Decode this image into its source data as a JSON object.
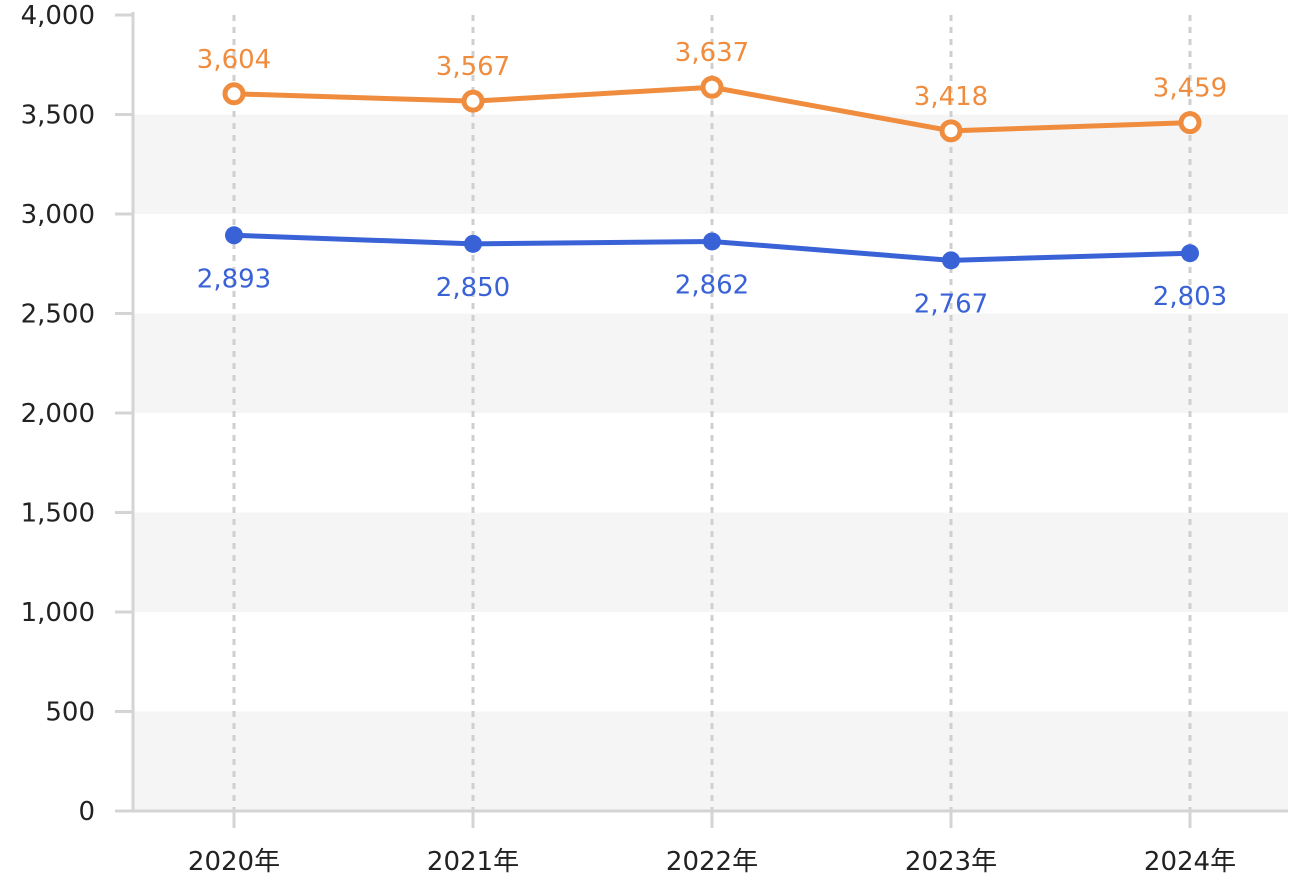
{
  "chart_data": {
    "type": "line",
    "categories": [
      "2020年",
      "2021年",
      "2022年",
      "2023年",
      "2024年"
    ],
    "series": [
      {
        "values": [
          3604,
          3567,
          3637,
          3418,
          3459
        ],
        "color": "#F08C3E",
        "marker": "hollow-circle",
        "label_position": "above"
      },
      {
        "values": [
          2893,
          2850,
          2862,
          2767,
          2803
        ],
        "color": "#3A62D7",
        "marker": "filled-circle",
        "label_position": "below"
      }
    ],
    "ylim": [
      0,
      4000
    ],
    "yticks": [
      0,
      500,
      1000,
      1500,
      2000,
      2500,
      3000,
      3500,
      4000
    ],
    "ytick_labels": [
      "0",
      "500",
      "1,000",
      "1,500",
      "2,000",
      "2,500",
      "3,000",
      "3,500",
      "4,000"
    ],
    "data_labels": [
      [
        "3,604",
        "3,567",
        "3,637",
        "3,418",
        "3,459"
      ],
      [
        "2,893",
        "2,850",
        "2,862",
        "2,767",
        "2,803"
      ]
    ],
    "grid": "alternating horizontal bands, dashed vertical lines at categories",
    "legend": "none"
  }
}
